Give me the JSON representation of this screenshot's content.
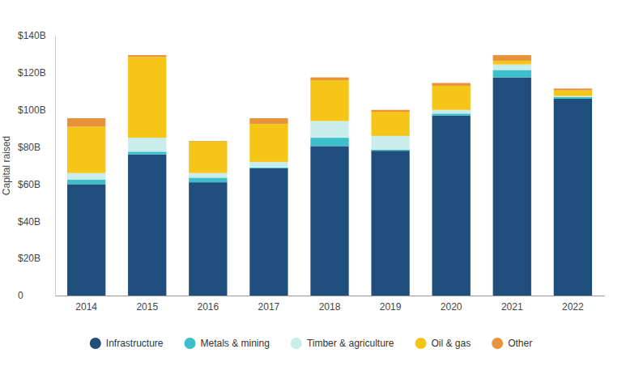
{
  "chart_data": {
    "type": "bar",
    "stacked": true,
    "grid": false,
    "legend": "bottom",
    "y_label": "Capital raised",
    "categories": [
      "2014",
      "2015",
      "2016",
      "2017",
      "2018",
      "2019",
      "2020",
      "2021",
      "2022"
    ],
    "series": [
      {
        "name": "Infrastructure",
        "color": "#204e7c",
        "values": [
          60,
          76,
          61,
          68.5,
          80.5,
          78,
          97,
          117.5,
          106
        ]
      },
      {
        "name": "Metals & mining",
        "color": "#3cbfca",
        "values": [
          2.5,
          1.5,
          2.5,
          0.5,
          4.5,
          0.5,
          1,
          4,
          1
        ]
      },
      {
        "name": "Timber & agriculture",
        "color": "#c9eced",
        "values": [
          3.5,
          7.5,
          2.5,
          3,
          9,
          7.5,
          2,
          3,
          0.5
        ]
      },
      {
        "name": "Oil & gas",
        "color": "#f5c518",
        "values": [
          25,
          43.5,
          17,
          20.5,
          22,
          13,
          13,
          2,
          3
        ]
      },
      {
        "name": "Other",
        "color": "#e8923a",
        "values": [
          4.5,
          1,
          0.3,
          3,
          1.5,
          1,
          1.5,
          3,
          1
        ]
      }
    ],
    "ylim": [
      0,
      140
    ],
    "yticks": [
      0,
      {
        "value": 20,
        "label": "$20B"
      },
      {
        "value": 40,
        "label": "$40B"
      },
      {
        "value": 60,
        "label": "$60B"
      },
      {
        "value": 80,
        "label": "$80B"
      },
      {
        "value": 100,
        "label": "$100B"
      },
      {
        "value": 120,
        "label": "$120B"
      },
      {
        "value": 140,
        "label": "$140B"
      }
    ]
  }
}
